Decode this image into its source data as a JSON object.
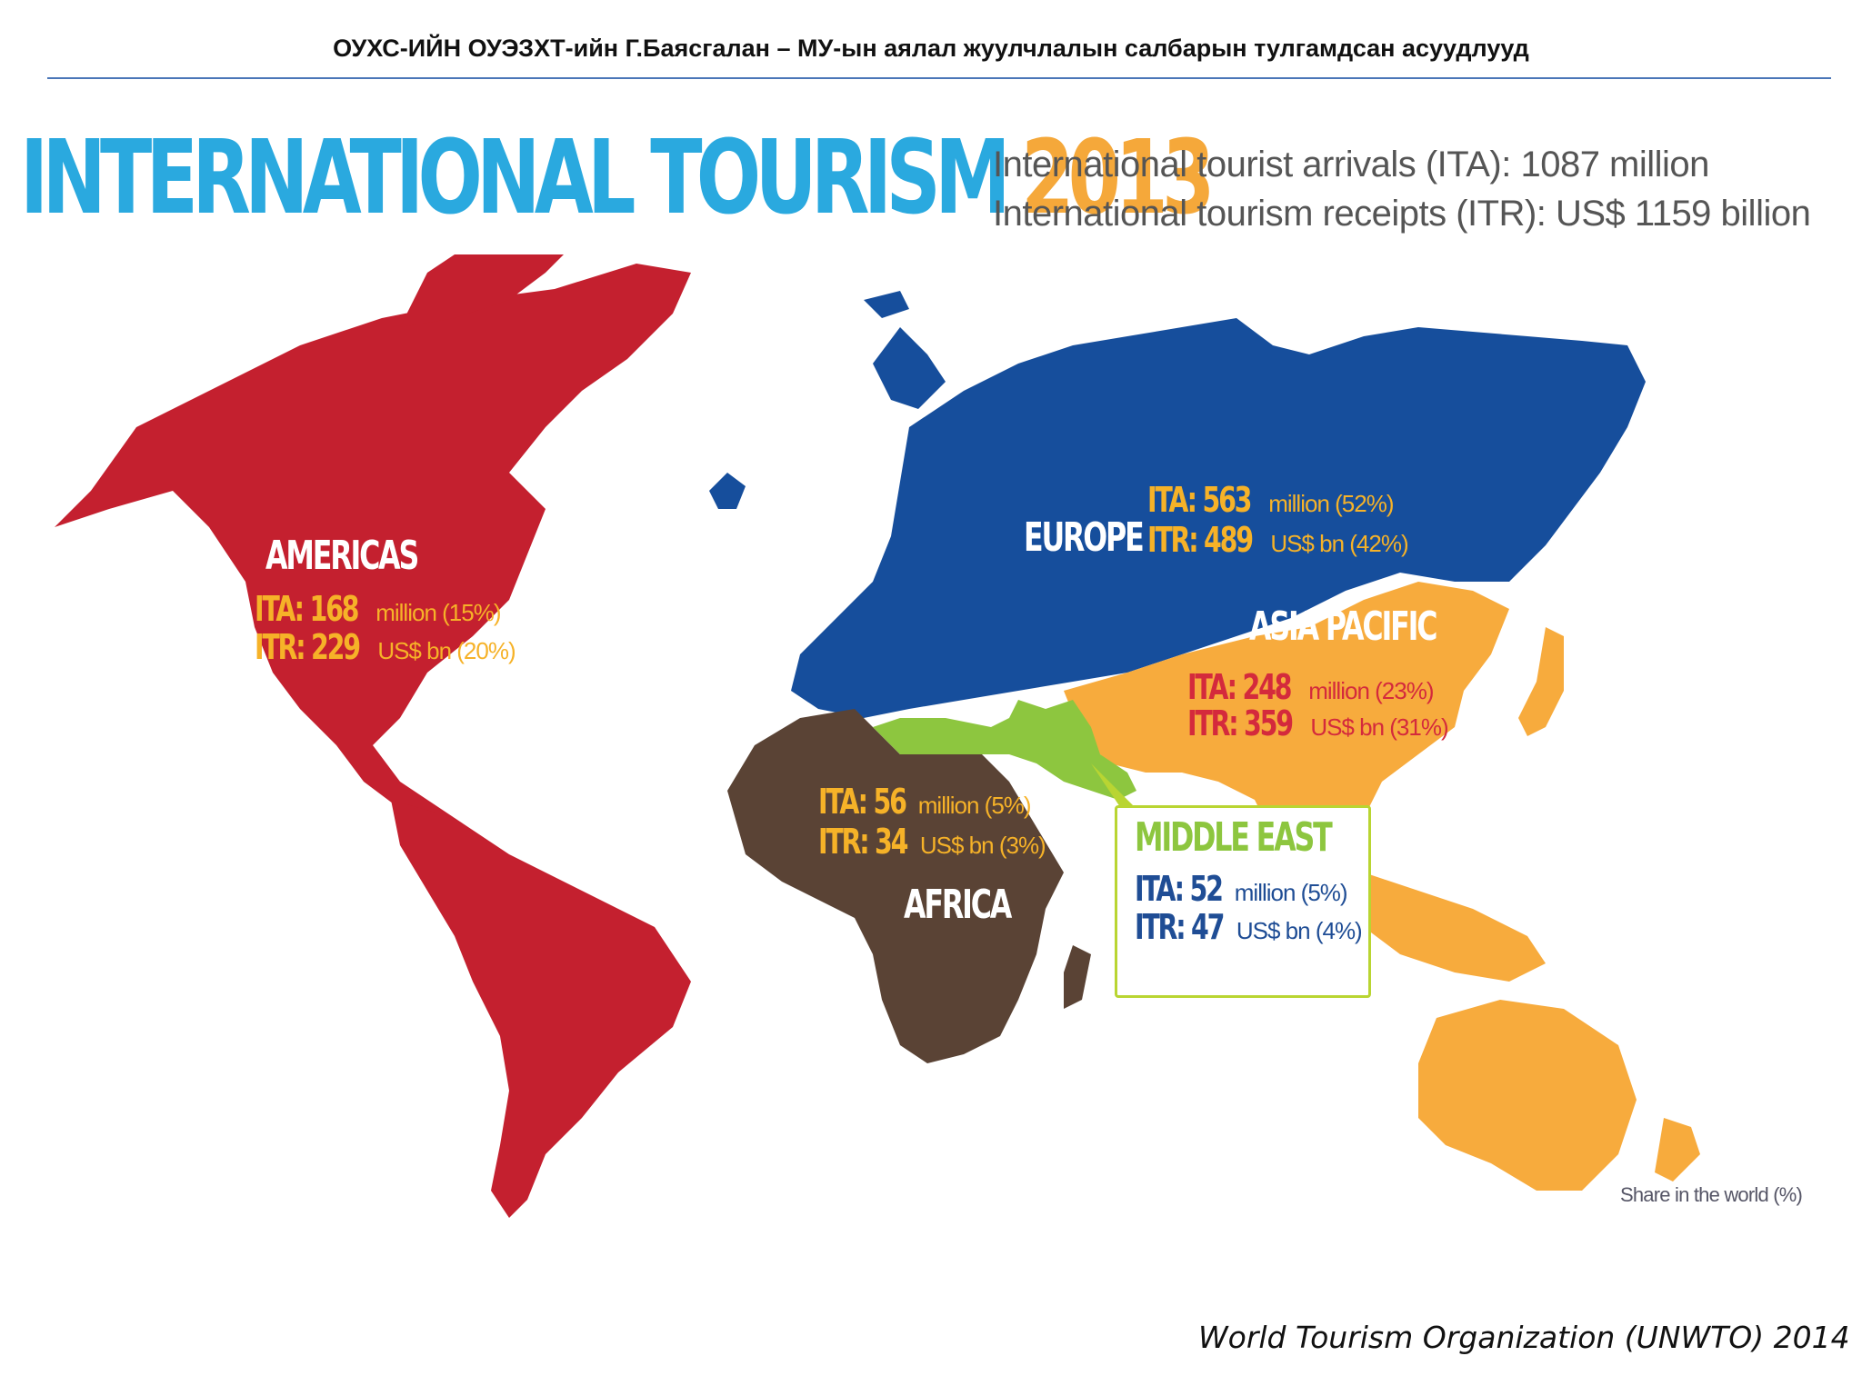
{
  "header": {
    "text": "ОУХС-ИЙН ОУЭЗХТ-ийн Г.Баясгалан – МУ-ын аялал жуулчлалын салбарын тулгамдсан асуудлууд"
  },
  "title": {
    "main": "INTERNATIONAL TOURISM",
    "year": "2013"
  },
  "totals": {
    "ita_line": "International tourist arrivals (ITA): 1087 million",
    "itr_line": "International tourism receipts (ITR): US$ 1159 billion"
  },
  "colors": {
    "title_blue": "#2aa9df",
    "title_orange": "#f5a83a",
    "americas": "#c4202f",
    "europe": "#164e9c",
    "asia_pacific": "#f7ab3d",
    "africa": "#5a4335",
    "middle_east": "#8dc63f"
  },
  "regions": {
    "americas": {
      "name": "AMERICAS",
      "ita_key": "ITA: 168",
      "ita_rest": "million (15%)",
      "itr_key": "ITR: 229",
      "itr_rest": "US$ bn (20%)"
    },
    "europe": {
      "name": "EUROPE",
      "ita_key": "ITA: 563",
      "ita_rest": "million (52%)",
      "itr_key": "ITR: 489",
      "itr_rest": "US$ bn (42%)"
    },
    "asia_pacific": {
      "name": "ASIA PACIFIC",
      "ita_key": "ITA: 248",
      "ita_rest": "million (23%)",
      "itr_key": "ITR: 359",
      "itr_rest": "US$ bn (31%)"
    },
    "africa": {
      "name": "AFRICA",
      "ita_key": "ITA: 56",
      "ita_rest": "million (5%)",
      "itr_key": "ITR: 34",
      "itr_rest": "US$ bn (3%)"
    },
    "middle_east": {
      "name": "MIDDLE EAST",
      "ita_key": "ITA: 52",
      "ita_rest": "million (5%)",
      "itr_key": "ITR: 47",
      "itr_rest": "US$ bn (4%)"
    }
  },
  "legend_note": "Share in the world (%)",
  "source": "World Tourism Organization (UNWTO) 2014"
}
